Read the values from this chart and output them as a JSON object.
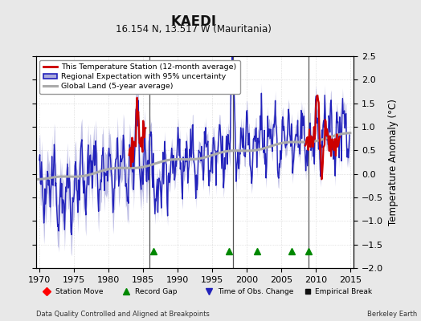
{
  "title": "KAEDI",
  "subtitle": "16.154 N, 13.517 W (Mauritania)",
  "ylabel": "Temperature Anomaly (°C)",
  "footer_left": "Data Quality Controlled and Aligned at Breakpoints",
  "footer_right": "Berkeley Earth",
  "xlim": [
    1969.5,
    2015.5
  ],
  "ylim": [
    -2.0,
    2.5
  ],
  "yticks": [
    -2,
    -1.5,
    -1,
    -0.5,
    0,
    0.5,
    1,
    1.5,
    2,
    2.5
  ],
  "xticks": [
    1970,
    1975,
    1980,
    1985,
    1990,
    1995,
    2000,
    2005,
    2010,
    2015
  ],
  "vertical_lines": [
    1986,
    1998,
    2009
  ],
  "record_gap_x": [
    1986.5,
    1997.5,
    2001.5,
    2006.5,
    2009.0
  ],
  "record_gap_y": -1.65,
  "bg_color": "#e8e8e8",
  "plot_bg_color": "#ffffff",
  "regional_color": "#2222bb",
  "regional_fill_color": "#aaaadd",
  "station_color": "#cc0000",
  "global_color": "#aaaaaa",
  "vline_color": "#555555",
  "grid_color": "#cccccc"
}
